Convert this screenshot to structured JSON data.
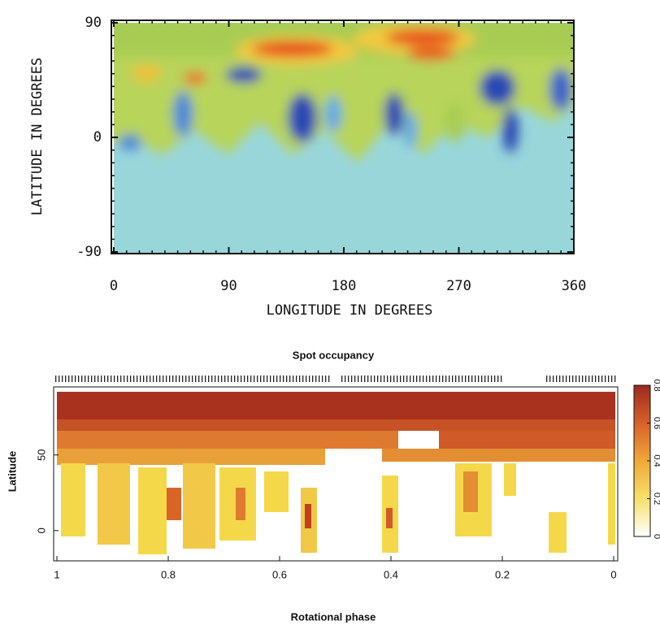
{
  "chart_data": [
    {
      "type": "heatmap",
      "xlabel": "LONGITUDE IN DEGREES",
      "ylabel": "LATITUDE IN DEGREES",
      "xlim": [
        0,
        360
      ],
      "ylim": [
        -90,
        90
      ],
      "xticks": [
        0,
        90,
        180,
        270,
        360
      ],
      "yticks": [
        -90,
        0,
        90
      ]
    },
    {
      "type": "heatmap",
      "title": "Spot occupancy",
      "xlabel": "Rotational phase",
      "ylabel": "Latitude",
      "xlim": [
        1,
        0
      ],
      "ylim": [
        -20,
        95
      ],
      "xticks": [
        1,
        0.8,
        0.6,
        0.4,
        0.2,
        0
      ],
      "yticks": [
        0,
        50
      ],
      "colorbar": {
        "lim": [
          0,
          0.8
        ],
        "ticks": [
          0,
          0.2,
          0.4,
          0.6,
          0.8
        ],
        "colors": [
          "#ffffff",
          "#f6e06a",
          "#f0a838",
          "#d8602a",
          "#9c2a1c"
        ]
      }
    }
  ]
}
